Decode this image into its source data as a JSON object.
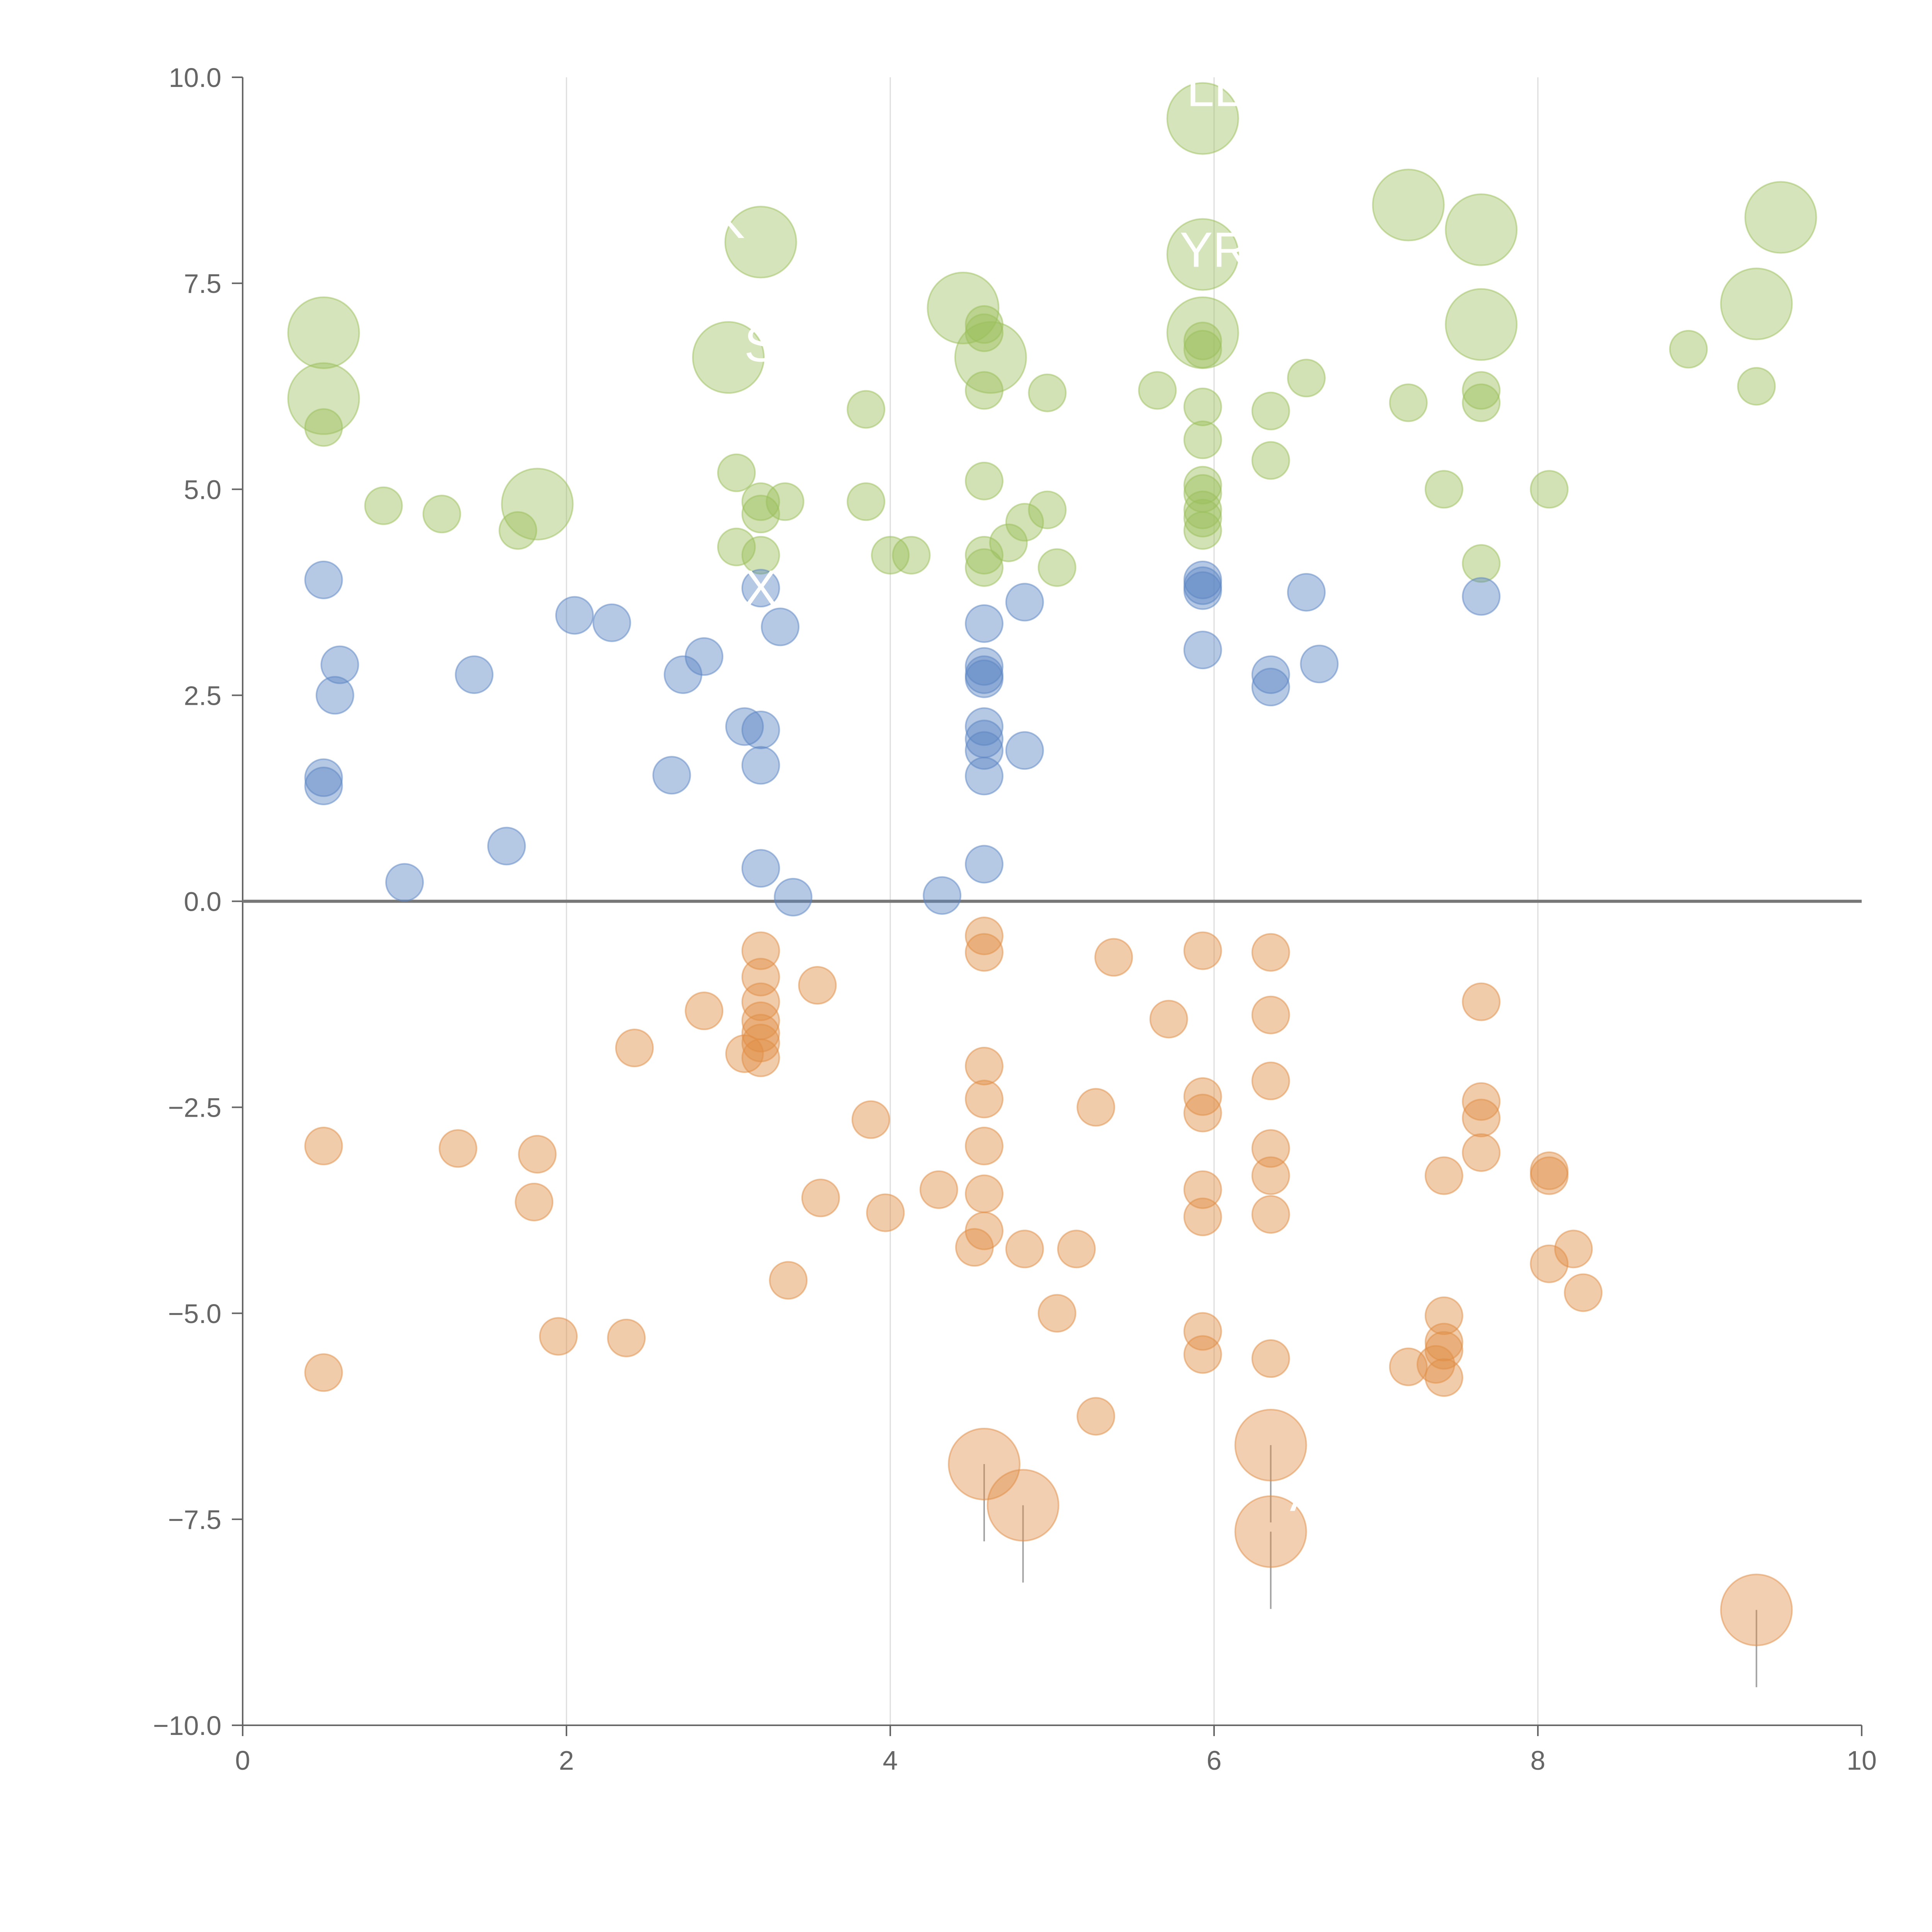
{
  "chart_data": {
    "type": "scatter",
    "title": "",
    "xlabel": "",
    "ylabel": "",
    "xlim": [
      0,
      10
    ],
    "ylim": [
      -10,
      10
    ],
    "x_ticks": [
      0,
      2,
      4,
      6,
      8,
      10
    ],
    "x_tick_labels": [
      "0",
      "2",
      "4",
      "6",
      "8",
      "10"
    ],
    "y_ticks": [
      10,
      7.5,
      5,
      2.5,
      0,
      -2.5,
      -5,
      -7.5,
      -10
    ],
    "y_tick_labels": [
      "10.0",
      "7.5",
      "5.0",
      "2.5",
      "0.0",
      "−2.5",
      "−5.0",
      "−7.5",
      "−10.0"
    ],
    "vertical_gridlines": [
      2,
      4,
      6,
      8
    ],
    "zero_line": 0,
    "colors": {
      "green": "#9cbf5b",
      "blue": "#5b86c4",
      "orange": "#e08d45",
      "axis": "#666666",
      "grid": "#dddddd",
      "zero": "#777777",
      "leader": "#999999"
    },
    "series": [
      {
        "name": "green",
        "color": "#9cbf5b",
        "points": [
          [
            0.5,
            6.9,
            1
          ],
          [
            0.5,
            6.1,
            1
          ],
          [
            0.5,
            5.75,
            0
          ],
          [
            0.87,
            4.8,
            0
          ],
          [
            1.23,
            4.7,
            0
          ],
          [
            1.7,
            4.5,
            0
          ],
          [
            1.82,
            4.82,
            1
          ],
          [
            3.0,
            6.6,
            1
          ],
          [
            3.2,
            8.0,
            1
          ],
          [
            3.05,
            5.2,
            0
          ],
          [
            3.2,
            4.85,
            0
          ],
          [
            3.2,
            4.7,
            0
          ],
          [
            3.05,
            4.3,
            0
          ],
          [
            3.2,
            4.2,
            0
          ],
          [
            3.35,
            4.85,
            0
          ],
          [
            3.85,
            5.97,
            0
          ],
          [
            3.85,
            4.85,
            0
          ],
          [
            4.0,
            4.2,
            0
          ],
          [
            4.13,
            4.2,
            0
          ],
          [
            4.45,
            7.2,
            1
          ],
          [
            4.58,
            7.0,
            0
          ],
          [
            4.58,
            6.9,
            0
          ],
          [
            4.62,
            6.6,
            1
          ],
          [
            4.58,
            6.2,
            0
          ],
          [
            4.58,
            5.1,
            0
          ],
          [
            4.58,
            4.2,
            0
          ],
          [
            4.58,
            4.05,
            0
          ],
          [
            4.73,
            4.35,
            0
          ],
          [
            4.83,
            4.6,
            0
          ],
          [
            4.97,
            4.75,
            0
          ],
          [
            4.97,
            6.17,
            0
          ],
          [
            5.03,
            4.05,
            0
          ],
          [
            5.93,
            9.5,
            1
          ],
          [
            5.93,
            7.85,
            1
          ],
          [
            5.93,
            6.9,
            1
          ],
          [
            5.93,
            6.8,
            0
          ],
          [
            5.93,
            6.7,
            0
          ],
          [
            5.93,
            6.0,
            0
          ],
          [
            5.93,
            5.6,
            0
          ],
          [
            5.93,
            5.05,
            0
          ],
          [
            5.93,
            4.95,
            0
          ],
          [
            5.93,
            4.75,
            0
          ],
          [
            5.93,
            4.65,
            0
          ],
          [
            5.93,
            4.5,
            0
          ],
          [
            5.65,
            6.2,
            0
          ],
          [
            6.35,
            5.95,
            0
          ],
          [
            6.35,
            5.35,
            0
          ],
          [
            6.57,
            6.35,
            0
          ],
          [
            7.2,
            8.45,
            1
          ],
          [
            7.2,
            6.05,
            0
          ],
          [
            7.42,
            5.0,
            0
          ],
          [
            7.65,
            8.15,
            1
          ],
          [
            7.65,
            7.0,
            1
          ],
          [
            7.65,
            6.2,
            0
          ],
          [
            7.65,
            6.05,
            0
          ],
          [
            7.65,
            4.1,
            0
          ],
          [
            8.07,
            5.0,
            0
          ],
          [
            8.93,
            6.7,
            0
          ],
          [
            9.35,
            7.25,
            1
          ],
          [
            9.35,
            6.25,
            0
          ],
          [
            9.5,
            8.3,
            1
          ]
        ]
      },
      {
        "name": "blue",
        "color": "#5b86c4",
        "points": [
          [
            0.5,
            3.9,
            0
          ],
          [
            0.6,
            2.87,
            0
          ],
          [
            0.57,
            2.5,
            0
          ],
          [
            0.5,
            1.5,
            0
          ],
          [
            0.5,
            1.4,
            0
          ],
          [
            1.0,
            0.23,
            0
          ],
          [
            1.43,
            2.75,
            0
          ],
          [
            1.63,
            0.67,
            0
          ],
          [
            2.05,
            3.47,
            0
          ],
          [
            2.28,
            3.38,
            0
          ],
          [
            2.65,
            1.53,
            0
          ],
          [
            2.72,
            2.75,
            0
          ],
          [
            2.85,
            2.97,
            0
          ],
          [
            3.1,
            2.12,
            0
          ],
          [
            3.2,
            2.08,
            0
          ],
          [
            3.2,
            1.65,
            0
          ],
          [
            3.2,
            0.4,
            0
          ],
          [
            3.2,
            3.8,
            0
          ],
          [
            3.32,
            3.33,
            0
          ],
          [
            3.4,
            0.05,
            0
          ],
          [
            4.32,
            0.07,
            0
          ],
          [
            4.58,
            3.37,
            0
          ],
          [
            4.58,
            2.85,
            0
          ],
          [
            4.58,
            2.75,
            0
          ],
          [
            4.58,
            2.7,
            0
          ],
          [
            4.58,
            2.12,
            0
          ],
          [
            4.58,
            1.97,
            0
          ],
          [
            4.58,
            1.83,
            0
          ],
          [
            4.58,
            1.52,
            0
          ],
          [
            4.58,
            0.45,
            0
          ],
          [
            4.83,
            3.63,
            0
          ],
          [
            4.83,
            1.83,
            0
          ],
          [
            5.93,
            3.9,
            0
          ],
          [
            5.93,
            3.77,
            0
          ],
          [
            5.93,
            3.83,
            0
          ],
          [
            5.93,
            3.05,
            0
          ],
          [
            6.35,
            2.75,
            0
          ],
          [
            6.35,
            2.6,
            0
          ],
          [
            6.57,
            3.75,
            0
          ],
          [
            6.65,
            2.88,
            0
          ],
          [
            7.65,
            3.7,
            0
          ]
        ]
      },
      {
        "name": "orange",
        "color": "#e08d45",
        "points": [
          [
            0.5,
            -2.97,
            0
          ],
          [
            0.5,
            -5.72,
            0
          ],
          [
            1.33,
            -3.0,
            0
          ],
          [
            1.82,
            -3.07,
            0
          ],
          [
            1.8,
            -3.65,
            0
          ],
          [
            1.95,
            -5.28,
            0
          ],
          [
            2.37,
            -5.3,
            0
          ],
          [
            2.42,
            -1.78,
            0
          ],
          [
            2.85,
            -1.33,
            0
          ],
          [
            3.1,
            -1.85,
            0
          ],
          [
            3.2,
            -0.6,
            0
          ],
          [
            3.2,
            -0.92,
            0
          ],
          [
            3.2,
            -1.22,
            0
          ],
          [
            3.2,
            -1.45,
            0
          ],
          [
            3.2,
            -1.6,
            0
          ],
          [
            3.2,
            -1.72,
            0
          ],
          [
            3.2,
            -1.9,
            0
          ],
          [
            3.37,
            -4.6,
            0
          ],
          [
            3.55,
            -1.02,
            0
          ],
          [
            3.57,
            -3.6,
            0
          ],
          [
            3.88,
            -2.65,
            0
          ],
          [
            3.97,
            -3.78,
            0
          ],
          [
            4.3,
            -3.5,
            0
          ],
          [
            4.52,
            -4.2,
            0
          ],
          [
            4.58,
            -0.42,
            0
          ],
          [
            4.58,
            -0.62,
            0
          ],
          [
            4.58,
            -2.0,
            0
          ],
          [
            4.58,
            -2.4,
            0
          ],
          [
            4.58,
            -2.97,
            0
          ],
          [
            4.58,
            -3.55,
            0
          ],
          [
            4.58,
            -4.0,
            0
          ],
          [
            4.58,
            -6.83,
            1
          ],
          [
            4.82,
            -7.33,
            1
          ],
          [
            4.83,
            -4.22,
            0
          ],
          [
            5.03,
            -5.0,
            0
          ],
          [
            5.15,
            -4.22,
            0
          ],
          [
            5.27,
            -2.5,
            0
          ],
          [
            5.27,
            -6.25,
            0
          ],
          [
            5.38,
            -0.68,
            0
          ],
          [
            5.72,
            -1.43,
            0
          ],
          [
            5.93,
            -0.6,
            0
          ],
          [
            5.93,
            -2.37,
            0
          ],
          [
            5.93,
            -2.57,
            0
          ],
          [
            5.93,
            -3.5,
            0
          ],
          [
            5.93,
            -3.83,
            0
          ],
          [
            5.93,
            -5.22,
            0
          ],
          [
            5.93,
            -5.5,
            0
          ],
          [
            6.35,
            -0.62,
            0
          ],
          [
            6.35,
            -1.38,
            0
          ],
          [
            6.35,
            -2.18,
            0
          ],
          [
            6.35,
            -3.0,
            0
          ],
          [
            6.35,
            -3.33,
            0
          ],
          [
            6.35,
            -3.8,
            0
          ],
          [
            6.35,
            -5.55,
            0
          ],
          [
            6.35,
            -6.6,
            1
          ],
          [
            6.35,
            -7.65,
            1
          ],
          [
            7.2,
            -5.65,
            0
          ],
          [
            7.37,
            -5.62,
            0
          ],
          [
            7.42,
            -3.33,
            0
          ],
          [
            7.42,
            -5.03,
            0
          ],
          [
            7.42,
            -5.35,
            0
          ],
          [
            7.42,
            -5.45,
            0
          ],
          [
            7.42,
            -5.78,
            0
          ],
          [
            7.65,
            -1.22,
            0
          ],
          [
            7.65,
            -2.43,
            0
          ],
          [
            7.65,
            -2.63,
            0
          ],
          [
            7.65,
            -3.05,
            0
          ],
          [
            8.07,
            -3.27,
            0
          ],
          [
            8.07,
            -3.33,
            0
          ],
          [
            8.07,
            -4.4,
            0
          ],
          [
            8.22,
            -4.22,
            0
          ],
          [
            8.28,
            -4.75,
            0
          ],
          [
            9.35,
            -8.6,
            1
          ]
        ]
      }
    ],
    "annotations": [
      {
        "text": "LL",
        "x": 6.0,
        "y": 9.65
      },
      {
        "text": "YR",
        "x": 6.0,
        "y": 7.7
      },
      {
        "text": "S",
        "x": 3.2,
        "y": 6.55
      },
      {
        "text": "K",
        "x": 3.0,
        "y": 8.05
      },
      {
        "text": "X",
        "x": 3.2,
        "y": 3.6
      },
      {
        "text": "A",
        "x": 6.57,
        "y": -7.4
      }
    ]
  }
}
